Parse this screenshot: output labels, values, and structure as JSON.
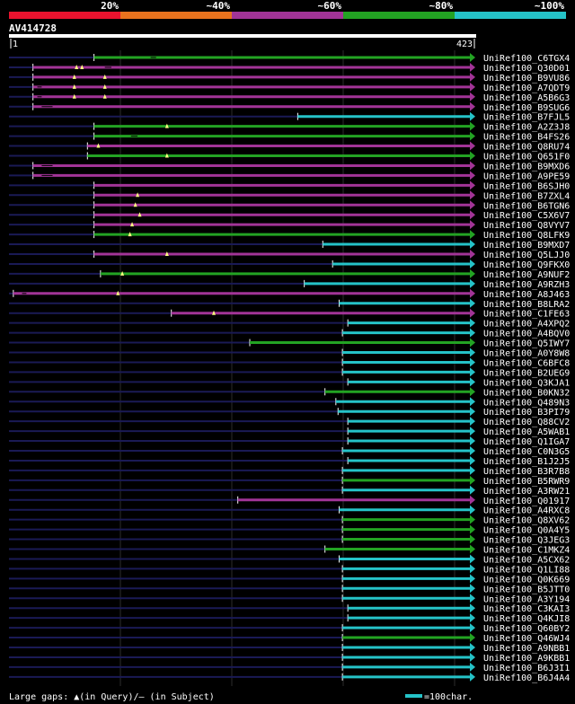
{
  "header": {
    "percent_labels": [
      "20%",
      "~40%",
      "~60%",
      "~80%",
      "~100%"
    ],
    "colors": [
      "#e8132e",
      "#e8731e",
      "#a23497",
      "#23a323",
      "#25c3c8"
    ]
  },
  "query_id": "AV414728",
  "ruler": {
    "start": "1",
    "end": "423"
  },
  "footer": {
    "left": "Large gaps: ▲(in Query)/– (in Subject)",
    "right": "=100char."
  },
  "chart_data": {
    "type": "alignment-overview",
    "query_length": 423,
    "colors": {
      "red": "#e8132e",
      "orange": "#e8731e",
      "purple": "#a23497",
      "green": "#23a323",
      "cyan": "#25c3c8",
      "dark": "#1a1a55"
    },
    "rows": [
      {
        "name": "UniRef100_C6TGX4",
        "color": "green",
        "start": 78,
        "gaps": [
          [
            130,
            135
          ]
        ],
        "marks": []
      },
      {
        "name": "UniRef100_Q30D01",
        "color": "purple",
        "start": 22,
        "gaps": [
          [
            88,
            94
          ]
        ],
        "marks": [
          62,
          67
        ]
      },
      {
        "name": "UniRef100_B9VU86",
        "color": "purple",
        "start": 22,
        "gaps": [],
        "marks": [
          60,
          88
        ]
      },
      {
        "name": "UniRef100_A7QDT9",
        "color": "purple",
        "start": 22,
        "gaps": [
          [
            26,
            30
          ]
        ],
        "marks": [
          60,
          88
        ]
      },
      {
        "name": "UniRef100_A5B6G3",
        "color": "purple",
        "start": 22,
        "gaps": [
          [
            26,
            30
          ]
        ],
        "marks": [
          60,
          88
        ]
      },
      {
        "name": "UniRef100_B9SUG6",
        "color": "purple",
        "start": 22,
        "gaps": [
          [
            30,
            40
          ]
        ],
        "marks": []
      },
      {
        "name": "UniRef100_B7FJL5",
        "color": "cyan",
        "start": 265,
        "gaps": [],
        "marks": []
      },
      {
        "name": "UniRef100_A2Z3J8",
        "color": "green",
        "start": 78,
        "gaps": [],
        "marks": [
          145
        ]
      },
      {
        "name": "UniRef100_B4FS26",
        "color": "green",
        "start": 78,
        "gaps": [
          [
            112,
            118
          ]
        ],
        "marks": []
      },
      {
        "name": "UniRef100_Q8RU74",
        "color": "purple",
        "start": 72,
        "gaps": [],
        "marks": [
          82
        ]
      },
      {
        "name": "UniRef100_Q651F0",
        "color": "green",
        "start": 72,
        "gaps": [],
        "marks": [
          145
        ]
      },
      {
        "name": "UniRef100_B9MXD6",
        "color": "purple",
        "start": 22,
        "gaps": [
          [
            30,
            40
          ]
        ],
        "marks": []
      },
      {
        "name": "UniRef100_A9PE59",
        "color": "purple",
        "start": 22,
        "gaps": [
          [
            30,
            40
          ]
        ],
        "marks": []
      },
      {
        "name": "UniRef100_B6SJH0",
        "color": "purple",
        "start": 78,
        "gaps": [],
        "marks": []
      },
      {
        "name": "UniRef100_B7ZXL4",
        "color": "purple",
        "start": 78,
        "gaps": [],
        "marks": [
          118
        ]
      },
      {
        "name": "UniRef100_B6TGN6",
        "color": "purple",
        "start": 78,
        "gaps": [],
        "marks": [
          116
        ]
      },
      {
        "name": "UniRef100_C5X6V7",
        "color": "purple",
        "start": 78,
        "gaps": [],
        "marks": [
          120
        ]
      },
      {
        "name": "UniRef100_Q8VYV7",
        "color": "purple",
        "start": 78,
        "gaps": [],
        "marks": [
          113
        ]
      },
      {
        "name": "UniRef100_Q8LFK9",
        "color": "green",
        "start": 78,
        "gaps": [],
        "marks": [
          111
        ]
      },
      {
        "name": "UniRef100_B9MXD7",
        "color": "cyan",
        "start": 288,
        "gaps": [],
        "marks": []
      },
      {
        "name": "UniRef100_Q5LJJ0",
        "color": "purple",
        "start": 78,
        "gaps": [],
        "marks": [
          145
        ]
      },
      {
        "name": "UniRef100_Q9FKX0",
        "color": "cyan",
        "start": 297,
        "gaps": [],
        "marks": []
      },
      {
        "name": "UniRef100_A9NUF2",
        "color": "green",
        "start": 84,
        "gaps": [],
        "marks": [
          104
        ]
      },
      {
        "name": "UniRef100_A9RZH3",
        "color": "cyan",
        "start": 271,
        "gaps": [],
        "marks": []
      },
      {
        "name": "UniRef100_A8J463",
        "color": "purple",
        "start": 4,
        "gaps": [
          [
            12,
            16
          ]
        ],
        "marks": [
          100
        ]
      },
      {
        "name": "UniRef100_B8LRA2",
        "color": "cyan",
        "start": 303,
        "gaps": [],
        "marks": []
      },
      {
        "name": "UniRef100_C1FE63",
        "color": "purple",
        "start": 149,
        "gaps": [],
        "marks": [
          188
        ]
      },
      {
        "name": "UniRef100_A4XPQ2",
        "color": "cyan",
        "start": 311,
        "gaps": [],
        "marks": []
      },
      {
        "name": "UniRef100_A4BQV0",
        "color": "cyan",
        "start": 306,
        "gaps": [],
        "marks": []
      },
      {
        "name": "UniRef100_Q5IWY7",
        "color": "green",
        "start": 221,
        "gaps": [],
        "marks": []
      },
      {
        "name": "UniRef100_A0Y8W8",
        "color": "cyan",
        "start": 306,
        "gaps": [],
        "marks": []
      },
      {
        "name": "UniRef100_C6BFC8",
        "color": "cyan",
        "start": 306,
        "gaps": [],
        "marks": []
      },
      {
        "name": "UniRef100_B2UEG9",
        "color": "cyan",
        "start": 306,
        "gaps": [],
        "marks": []
      },
      {
        "name": "UniRef100_Q3KJA1",
        "color": "cyan",
        "start": 311,
        "gaps": [],
        "marks": []
      },
      {
        "name": "UniRef100_B0KN32",
        "color": "green",
        "start": 290,
        "gaps": [],
        "marks": []
      },
      {
        "name": "UniRef100_Q489N3",
        "color": "cyan",
        "start": 300,
        "gaps": [],
        "marks": []
      },
      {
        "name": "UniRef100_B3PI79",
        "color": "cyan",
        "start": 302,
        "gaps": [],
        "marks": []
      },
      {
        "name": "UniRef100_Q88CV2",
        "color": "cyan",
        "start": 311,
        "gaps": [],
        "marks": []
      },
      {
        "name": "UniRef100_A5WAB1",
        "color": "cyan",
        "start": 311,
        "gaps": [],
        "marks": []
      },
      {
        "name": "UniRef100_Q1IGA7",
        "color": "cyan",
        "start": 311,
        "gaps": [],
        "marks": []
      },
      {
        "name": "UniRef100_C0N3G5",
        "color": "cyan",
        "start": 306,
        "gaps": [],
        "marks": []
      },
      {
        "name": "UniRef100_B1J2J5",
        "color": "cyan",
        "start": 311,
        "gaps": [],
        "marks": []
      },
      {
        "name": "UniRef100_B3R7B8",
        "color": "cyan",
        "start": 306,
        "gaps": [],
        "marks": []
      },
      {
        "name": "UniRef100_B5RWR9",
        "color": "green",
        "start": 306,
        "gaps": [],
        "marks": []
      },
      {
        "name": "UniRef100_A3RW21",
        "color": "cyan",
        "start": 306,
        "gaps": [],
        "marks": []
      },
      {
        "name": "UniRef100_Q01917",
        "color": "purple",
        "start": 210,
        "gaps": [],
        "marks": []
      },
      {
        "name": "UniRef100_A4RXC8",
        "color": "cyan",
        "start": 303,
        "gaps": [],
        "marks": []
      },
      {
        "name": "UniRef100_Q8XV62",
        "color": "green",
        "start": 306,
        "gaps": [],
        "marks": []
      },
      {
        "name": "UniRef100_Q0A4Y5",
        "color": "green",
        "start": 306,
        "gaps": [],
        "marks": []
      },
      {
        "name": "UniRef100_Q3JEG3",
        "color": "green",
        "start": 306,
        "gaps": [],
        "marks": []
      },
      {
        "name": "UniRef100_C1MKZ4",
        "color": "green",
        "start": 290,
        "gaps": [],
        "marks": []
      },
      {
        "name": "UniRef100_A5CX62",
        "color": "cyan",
        "start": 303,
        "gaps": [],
        "marks": []
      },
      {
        "name": "UniRef100_Q1LI88",
        "color": "cyan",
        "start": 306,
        "gaps": [],
        "marks": []
      },
      {
        "name": "UniRef100_Q0K669",
        "color": "cyan",
        "start": 306,
        "gaps": [],
        "marks": []
      },
      {
        "name": "UniRef100_B5JTT0",
        "color": "cyan",
        "start": 306,
        "gaps": [],
        "marks": []
      },
      {
        "name": "UniRef100_A3Y194",
        "color": "cyan",
        "start": 306,
        "gaps": [],
        "marks": []
      },
      {
        "name": "UniRef100_C3KAI3",
        "color": "cyan",
        "start": 311,
        "gaps": [],
        "marks": []
      },
      {
        "name": "UniRef100_Q4KJI8",
        "color": "cyan",
        "start": 311,
        "gaps": [],
        "marks": []
      },
      {
        "name": "UniRef100_Q60BY2",
        "color": "cyan",
        "start": 306,
        "gaps": [],
        "marks": []
      },
      {
        "name": "UniRef100_Q46WJ4",
        "color": "green",
        "start": 306,
        "gaps": [],
        "marks": []
      },
      {
        "name": "UniRef100_A9NBB1",
        "color": "cyan",
        "start": 306,
        "gaps": [],
        "marks": []
      },
      {
        "name": "UniRef100_A9KBB1",
        "color": "cyan",
        "start": 306,
        "gaps": [],
        "marks": []
      },
      {
        "name": "UniRef100_B6J3I1",
        "color": "cyan",
        "start": 306,
        "gaps": [],
        "marks": []
      },
      {
        "name": "UniRef100_B6J4A4",
        "color": "cyan",
        "start": 306,
        "gaps": [],
        "marks": []
      }
    ]
  }
}
